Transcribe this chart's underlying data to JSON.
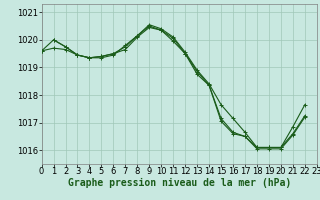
{
  "bg_color": "#c8e8e0",
  "grid_color": "#a0c8b8",
  "line_color": "#1a5c1a",
  "xlabel": "Graphe pression niveau de la mer (hPa)",
  "xlim": [
    0,
    23
  ],
  "ylim": [
    1015.5,
    1021.3
  ],
  "yticks": [
    1016,
    1017,
    1018,
    1019,
    1020,
    1021
  ],
  "xticks": [
    0,
    1,
    2,
    3,
    4,
    5,
    6,
    7,
    8,
    9,
    10,
    11,
    12,
    13,
    14,
    15,
    16,
    17,
    18,
    19,
    20,
    21,
    22,
    23
  ],
  "line1_x": [
    0,
    1,
    2,
    3,
    4,
    5,
    6,
    7,
    8,
    9,
    10,
    11,
    12,
    13,
    14,
    15,
    16,
    17,
    18,
    19,
    20,
    21,
    22
  ],
  "line1_y": [
    1019.6,
    1020.0,
    1019.75,
    1019.45,
    1019.35,
    1019.4,
    1019.5,
    1019.75,
    1020.15,
    1020.5,
    1020.35,
    1020.05,
    1019.5,
    1018.85,
    1018.35,
    1017.15,
    1016.65,
    1016.5,
    1016.1,
    1016.1,
    1016.1,
    1016.6,
    1017.25
  ],
  "line2_x": [
    1,
    2,
    3,
    4,
    5,
    6,
    7,
    8,
    9,
    10,
    11,
    12,
    13,
    14,
    15,
    16,
    17,
    18,
    19,
    20,
    21,
    22
  ],
  "line2_y": [
    1020.0,
    1019.75,
    1019.45,
    1019.35,
    1019.35,
    1019.45,
    1019.8,
    1020.15,
    1020.55,
    1020.4,
    1020.1,
    1019.55,
    1018.9,
    1018.4,
    1017.65,
    1017.15,
    1016.65,
    1016.1,
    1016.1,
    1016.1,
    1016.85,
    1017.65
  ],
  "line3_x": [
    0,
    1,
    2,
    3,
    4,
    5,
    6,
    7,
    8,
    9,
    10,
    11,
    12,
    13,
    14,
    15,
    16,
    17,
    18,
    19,
    20,
    21,
    22
  ],
  "line3_y": [
    1019.6,
    1019.7,
    1019.65,
    1019.45,
    1019.35,
    1019.4,
    1019.5,
    1019.65,
    1020.1,
    1020.45,
    1020.35,
    1019.95,
    1019.5,
    1018.75,
    1018.35,
    1017.05,
    1016.6,
    1016.5,
    1016.05,
    1016.05,
    1016.05,
    1016.55,
    1017.2
  ],
  "font_size_label": 7,
  "font_size_tick": 6,
  "lw": 0.8,
  "ms": 3.0,
  "mew": 0.7
}
